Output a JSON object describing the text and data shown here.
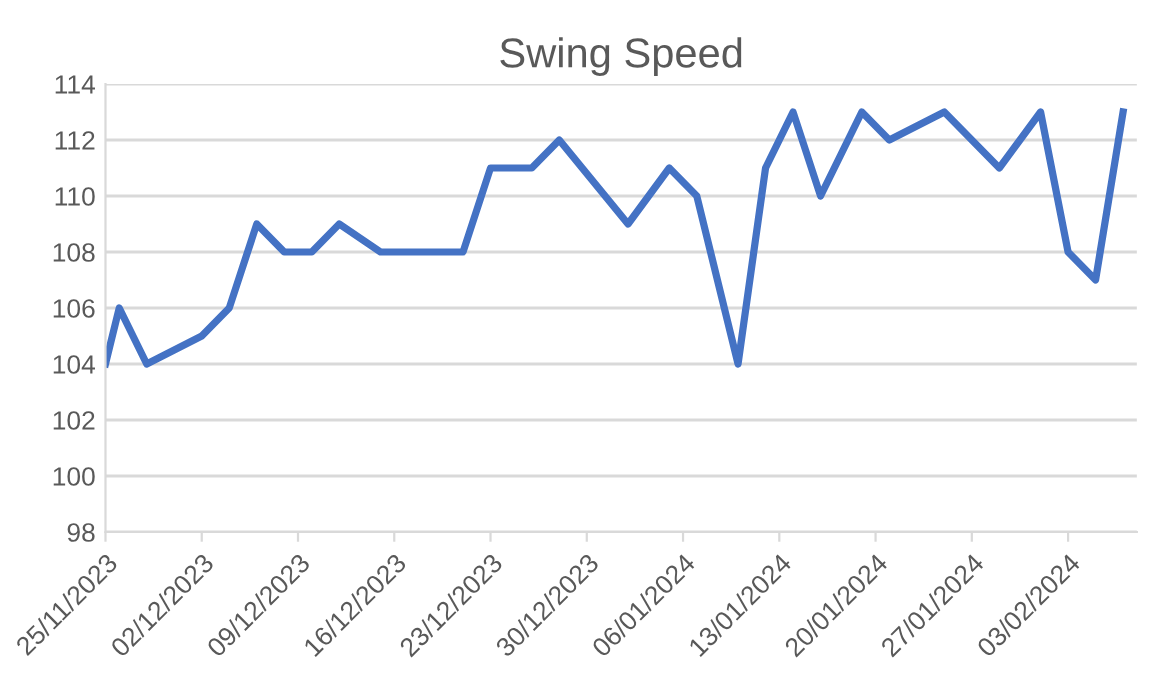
{
  "chart_data": {
    "type": "line",
    "title": "Swing Speed",
    "x": [
      "2023-11-25",
      "2023-11-26",
      "2023-11-28",
      "2023-12-02",
      "2023-12-04",
      "2023-12-06",
      "2023-12-08",
      "2023-12-10",
      "2023-12-12",
      "2023-12-15",
      "2023-12-21",
      "2023-12-23",
      "2023-12-26",
      "2023-12-28",
      "2024-01-02",
      "2024-01-05",
      "2024-01-07",
      "2024-01-10",
      "2024-01-12",
      "2024-01-14",
      "2024-01-16",
      "2024-01-19",
      "2024-01-21",
      "2024-01-25",
      "2024-01-29",
      "2024-02-01",
      "2024-02-03",
      "2024-02-05",
      "2024-02-07"
    ],
    "series": [
      {
        "color": "#4472c4",
        "values": [
          104,
          106,
          104,
          105,
          106,
          109,
          108,
          108,
          109,
          108,
          108,
          111,
          111,
          112,
          109,
          111,
          110,
          104,
          111,
          113,
          110,
          113,
          112,
          113,
          111,
          113,
          108,
          107,
          113
        ]
      }
    ],
    "xlim": [
      "2023-11-25",
      "2024-02-08"
    ],
    "xticks": [
      {
        "value": "2023-11-25",
        "label": "25/11/2023"
      },
      {
        "value": "2023-12-02",
        "label": "02/12/2023"
      },
      {
        "value": "2023-12-09",
        "label": "09/12/2023"
      },
      {
        "value": "2023-12-16",
        "label": "16/12/2023"
      },
      {
        "value": "2023-12-23",
        "label": "23/12/2023"
      },
      {
        "value": "2023-12-30",
        "label": "30/12/2023"
      },
      {
        "value": "2024-01-06",
        "label": "06/01/2024"
      },
      {
        "value": "2024-01-13",
        "label": "13/01/2024"
      },
      {
        "value": "2024-01-20",
        "label": "20/01/2024"
      },
      {
        "value": "2024-01-27",
        "label": "27/01/2024"
      },
      {
        "value": "2024-02-03",
        "label": "03/02/2024"
      }
    ],
    "ylim": [
      98,
      114
    ],
    "yticks": [
      98,
      100,
      102,
      104,
      106,
      108,
      110,
      112,
      114
    ],
    "grid": "y",
    "marker": "none",
    "line_style": "solid",
    "legend": false
  }
}
